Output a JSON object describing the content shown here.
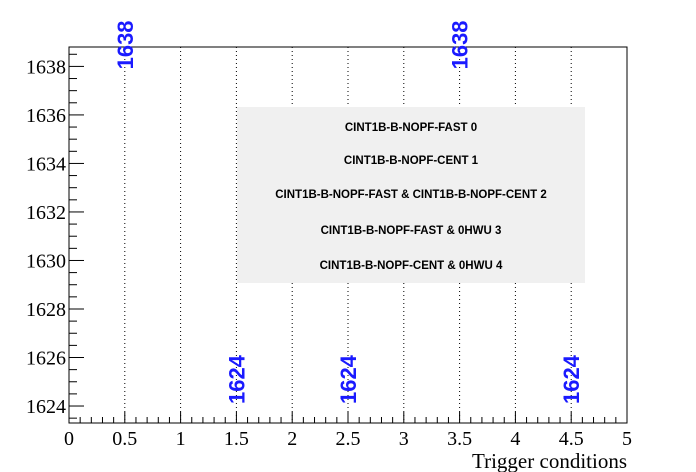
{
  "chart_data": {
    "type": "scatter",
    "title": "",
    "xlabel": "Trigger conditions",
    "ylabel": "",
    "xlim": [
      0,
      5
    ],
    "ylim": [
      1623.3,
      1638.8
    ],
    "x_ticks": [
      0,
      0.5,
      1,
      1.5,
      2,
      2.5,
      3,
      3.5,
      4,
      4.5,
      5
    ],
    "x_tick_labels": [
      "0",
      "0.5",
      "1",
      "1.5",
      "2",
      "2.5",
      "3",
      "3.5",
      "4",
      "4.5",
      "5"
    ],
    "y_ticks": [
      1624,
      1626,
      1628,
      1630,
      1632,
      1634,
      1636,
      1638
    ],
    "y_tick_labels": [
      "1624",
      "1626",
      "1628",
      "1630",
      "1632",
      "1634",
      "1636",
      "1638"
    ],
    "grid": "vertical dotted lines at each integer and half-integer x",
    "legend_placement": "upper-right, inside plot",
    "points": [
      {
        "x": 0.5,
        "y": 1638,
        "label": "1638"
      },
      {
        "x": 1.5,
        "y": 1624,
        "label": "1624"
      },
      {
        "x": 2.5,
        "y": 1624,
        "label": "1624"
      },
      {
        "x": 3.5,
        "y": 1638,
        "label": "1638"
      },
      {
        "x": 4.5,
        "y": 1624,
        "label": "1624"
      }
    ],
    "legend": [
      "CINT1B-B-NOPF-FAST 0",
      "CINT1B-B-NOPF-CENT 1",
      "CINT1B-B-NOPF-FAST & CINT1B-B-NOPF-CENT 2",
      "CINT1B-B-NOPF-FAST & 0HWU 3",
      "CINT1B-B-NOPF-CENT & 0HWU 4"
    ],
    "colors": {
      "value_label": "#1a1aff",
      "legend_box": "#f0f0f0",
      "axis": "#000000"
    }
  }
}
